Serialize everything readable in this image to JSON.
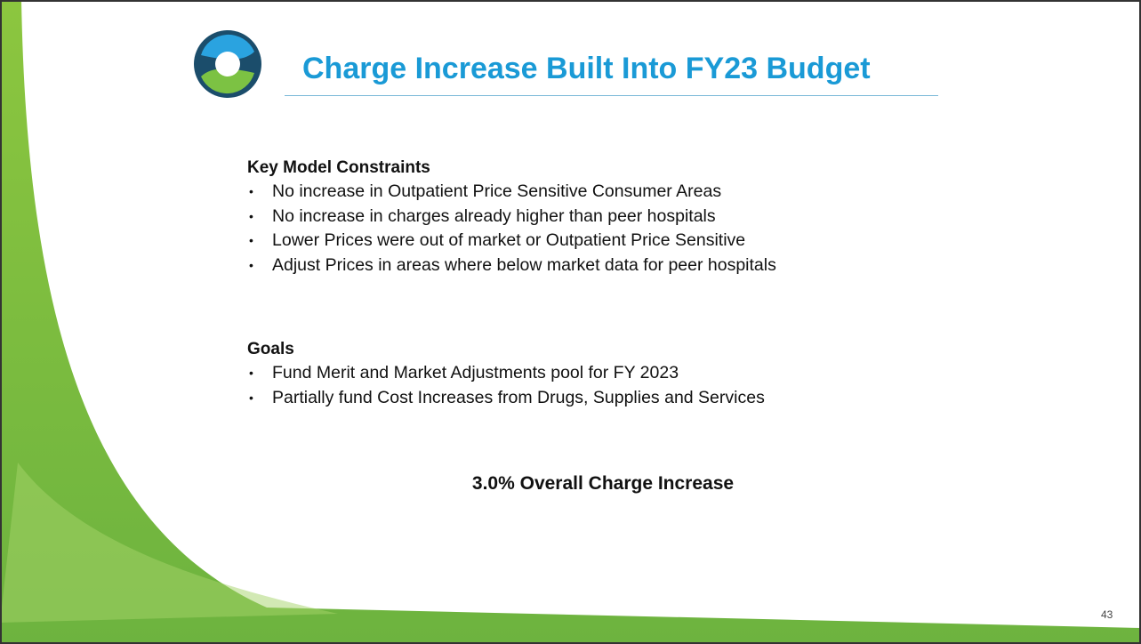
{
  "slide": {
    "title": "Charge Increase Built Into FY23 Budget",
    "sections": [
      {
        "heading": "Key Model Constraints",
        "bullets": [
          "No increase in Outpatient Price Sensitive Consumer Areas",
          "No increase in charges already higher than peer hospitals",
          "Lower Prices were out of market or Outpatient Price Sensitive",
          "Adjust Prices in areas where below market data for peer hospitals"
        ]
      },
      {
        "heading": "Goals",
        "bullets": [
          "Fund Merit and Market Adjustments pool for FY 2023",
          "Partially fund Cost Increases from Drugs, Supplies and Services"
        ]
      }
    ],
    "highlight": "3.0% Overall Charge Increase",
    "page_number": "43"
  }
}
